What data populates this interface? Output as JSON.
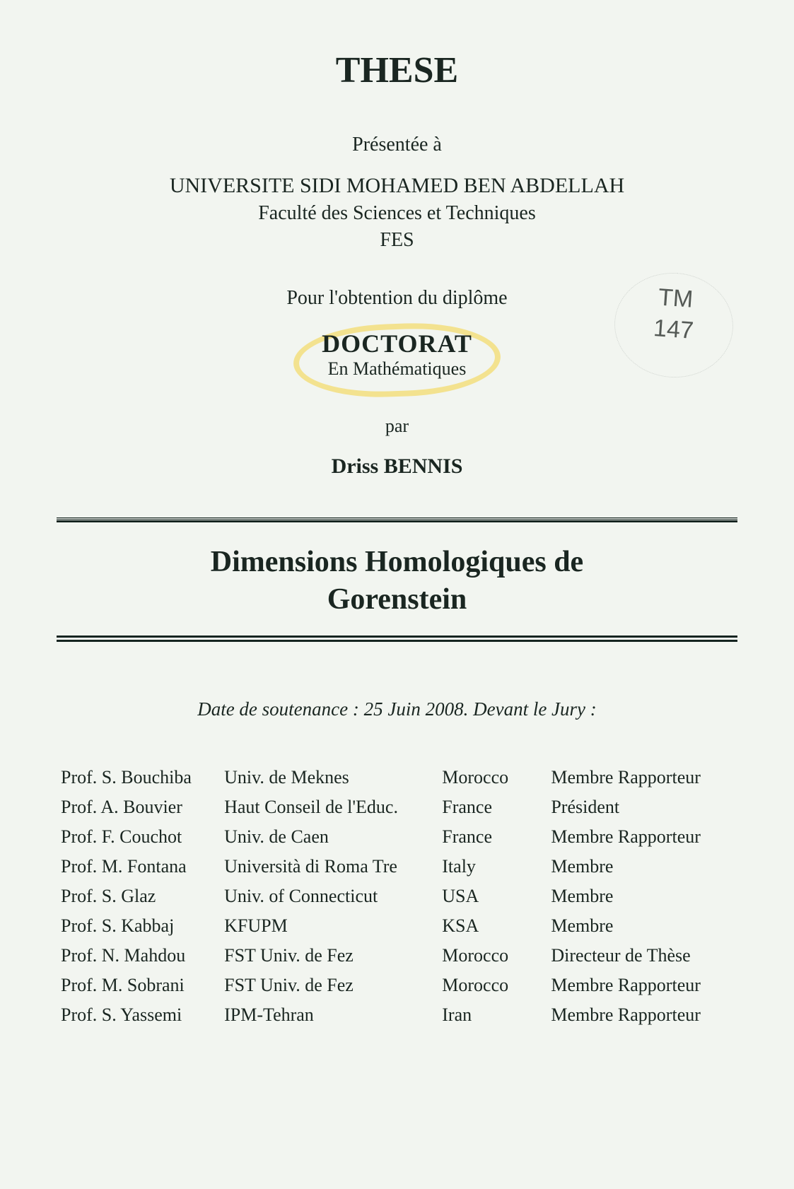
{
  "header": {
    "these": "THESE",
    "presented": "Présentée à",
    "university": "UNIVERSITE SIDI MOHAMED BEN ABDELLAH",
    "faculty": "Faculté des Sciences et Techniques",
    "city": "FES",
    "obtention": "Pour l'obtention du diplôme",
    "doctorat": "DOCTORAT",
    "subject": "En Mathématiques",
    "par": "par",
    "author": "Driss BENNIS"
  },
  "stamp": {
    "line1": "TM",
    "line2": "147"
  },
  "title": {
    "line1": "Dimensions Homologiques de",
    "line2": "Gorenstein"
  },
  "date_line": "Date de soutenance : 25 Juin 2008. Devant le Jury :",
  "jury": [
    {
      "name": "Prof. S. Bouchiba",
      "affil": "Univ. de Meknes",
      "country": "Morocco",
      "role": "Membre Rapporteur"
    },
    {
      "name": "Prof. A. Bouvier",
      "affil": "Haut Conseil de l'Educ.",
      "country": "France",
      "role": "Président"
    },
    {
      "name": "Prof. F. Couchot",
      "affil": "Univ. de Caen",
      "country": "France",
      "role": "Membre Rapporteur"
    },
    {
      "name": "Prof. M. Fontana",
      "affil": "Università di Roma Tre",
      "country": "Italy",
      "role": "Membre"
    },
    {
      "name": "Prof. S. Glaz",
      "affil": "Univ. of Connecticut",
      "country": "USA",
      "role": "Membre"
    },
    {
      "name": "Prof. S. Kabbaj",
      "affil": "KFUPM",
      "country": "KSA",
      "role": "Membre"
    },
    {
      "name": "Prof. N. Mahdou",
      "affil": "FST Univ. de Fez",
      "country": "Morocco",
      "role": "Directeur de Thèse"
    },
    {
      "name": "Prof. M. Sobrani",
      "affil": "FST Univ. de Fez",
      "country": "Morocco",
      "role": "Membre Rapporteur"
    },
    {
      "name": "Prof. S. Yassemi",
      "affil": "IPM-Tehran",
      "country": "Iran",
      "role": "Membre Rapporteur"
    }
  ],
  "colors": {
    "background": "#f2f5f0",
    "text": "#1a2621",
    "rule": "#152420",
    "highlight": "#f3e28f",
    "stamp": "#555a56"
  }
}
